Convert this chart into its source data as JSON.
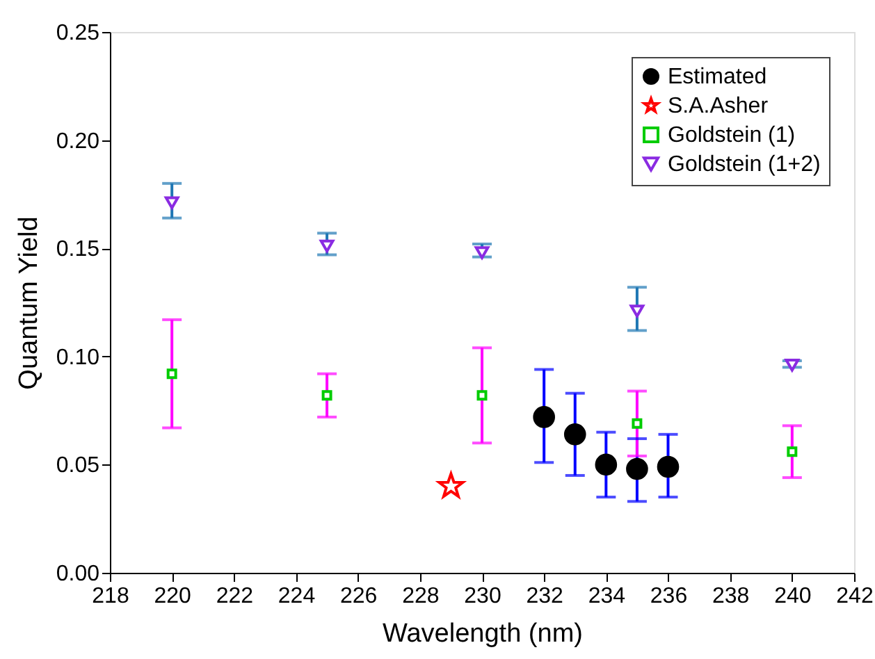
{
  "chart_data": {
    "type": "scatter",
    "xlabel": "Wavelength (nm)",
    "ylabel": "Quantum Yield",
    "xlim": [
      218,
      242
    ],
    "xticks": [
      218,
      220,
      222,
      224,
      226,
      228,
      230,
      232,
      234,
      236,
      238,
      240,
      242
    ],
    "ylim": [
      0,
      0.25
    ],
    "yticks": [
      {
        "value": 0,
        "label": "0.00"
      },
      {
        "value": 0.05,
        "label": "0.05"
      },
      {
        "value": 0.1,
        "label": "0.10"
      },
      {
        "value": 0.15,
        "label": "0.15"
      },
      {
        "value": 0.2,
        "label": "0.20"
      },
      {
        "value": 0.25,
        "label": "0.25"
      }
    ],
    "grid": false,
    "legend": "top right",
    "series": [
      {
        "name": "Estimated",
        "color": "#000000",
        "marker": "circle",
        "x": [
          232,
          233,
          234,
          235,
          236
        ],
        "values": [
          0.072,
          0.064,
          0.05,
          0.048,
          0.049
        ],
        "errors": [
          [
            0.051,
            0.094
          ],
          [
            0.045,
            0.083
          ],
          [
            0.035,
            0.065
          ],
          [
            0.033,
            0.062
          ],
          [
            0.035,
            0.064
          ]
        ]
      },
      {
        "name": "S.A.Asher",
        "color": "#ff0000",
        "marker": "star",
        "x": [
          229
        ],
        "values": [
          0.04
        ]
      },
      {
        "name": "Goldstein (1)",
        "color": "#00cc00",
        "marker": "square",
        "x": [
          220,
          225,
          230,
          235,
          240
        ],
        "values": [
          0.092,
          0.082,
          0.082,
          0.069,
          0.056
        ],
        "errors": [
          [
            0.067,
            0.117
          ],
          [
            0.072,
            0.092
          ],
          [
            0.06,
            0.104
          ],
          [
            0.054,
            0.084
          ],
          [
            0.044,
            0.068
          ]
        ]
      },
      {
        "name": "Goldstein (1+2)",
        "color": "#8a2be2",
        "marker": "triangle",
        "x": [
          220,
          225,
          230,
          235,
          240
        ],
        "values": [
          0.171,
          0.151,
          0.148,
          0.121,
          0.096
        ],
        "errors": [
          [
            0.164,
            0.18
          ],
          [
            0.147,
            0.157
          ],
          [
            0.146,
            0.152
          ],
          [
            0.112,
            0.132
          ],
          [
            0.095,
            0.098
          ]
        ]
      }
    ]
  }
}
